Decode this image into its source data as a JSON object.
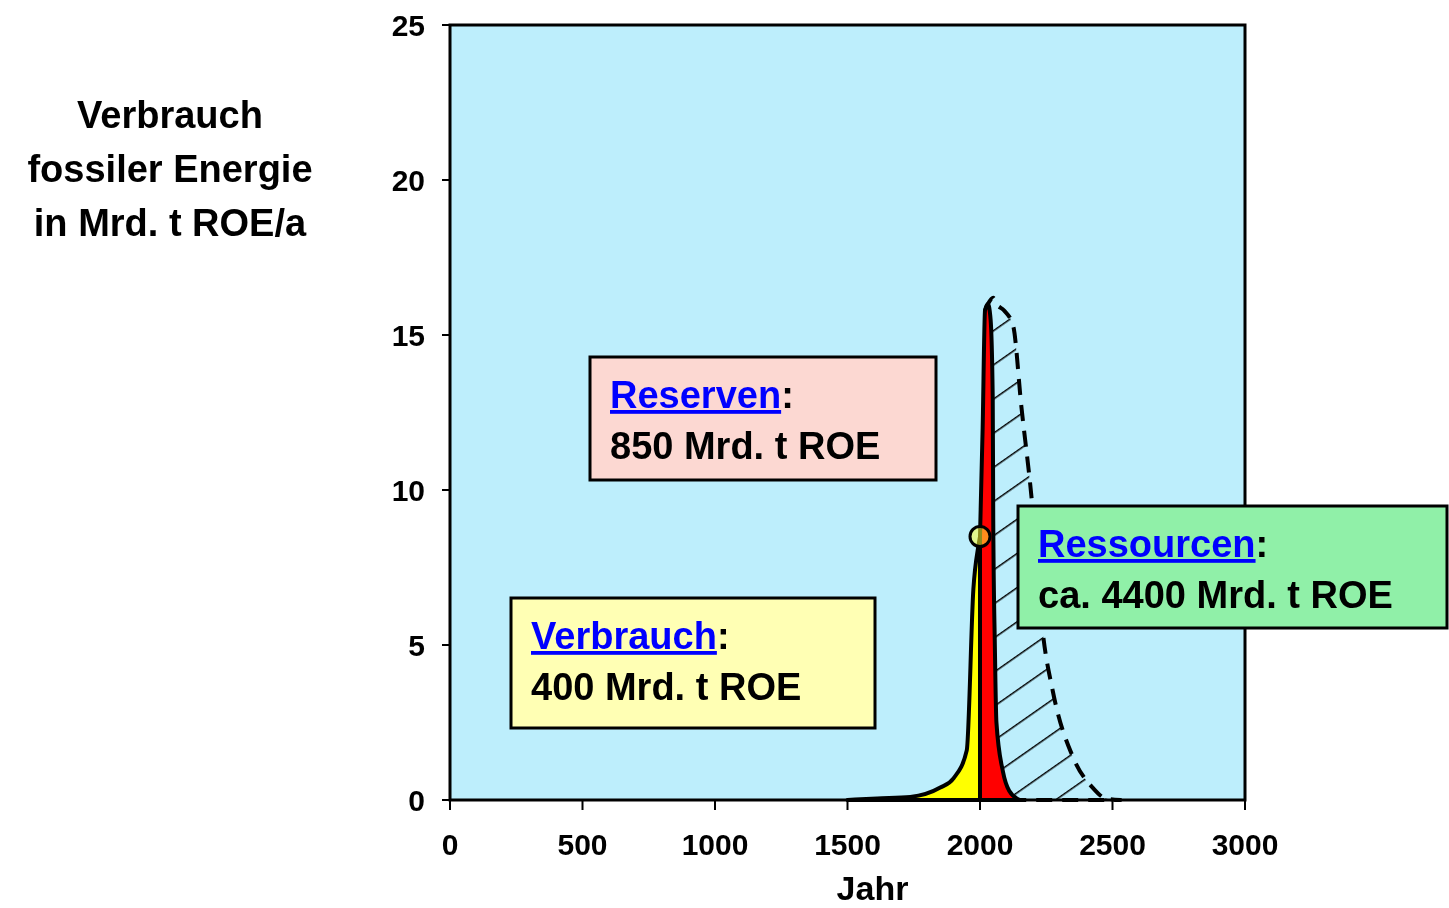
{
  "chart_data": {
    "type": "area",
    "xlabel": "Jahr",
    "ylabel": "Verbrauch fossiler Energie in Mrd. t ROE/a",
    "xlim": [
      0,
      3000
    ],
    "xticks": [
      0,
      500,
      1000,
      1500,
      2000,
      2500,
      3000
    ],
    "ylim": [
      0,
      25
    ],
    "yticks": [
      0,
      5,
      10,
      15,
      20,
      25
    ],
    "series": [
      {
        "color": "#000000",
        "line_style": "dashed",
        "x": [
          2019,
          2030,
          2050,
          2062,
          2090,
          2125,
          2156,
          2194,
          2237,
          2275,
          2350,
          2425,
          2475,
          2530
        ],
        "values": [
          15.8,
          16.0,
          16.2,
          16.0,
          15.8,
          15.3,
          12.7,
          9.8,
          5.4,
          3.5,
          1.4,
          0.4,
          0.05,
          0
        ]
      },
      {
        "color": "#ffff00",
        "x": [
          1500,
          1612,
          1737,
          1850,
          1900,
          1950,
          1975,
          1994,
          2000
        ],
        "values": [
          0,
          0.05,
          0.1,
          0.4,
          0.7,
          1.6,
          6.8,
          8.2,
          8.5
        ]
      },
      {
        "color": "#ff0000",
        "x": [
          2000,
          2010,
          2019,
          2030,
          2040,
          2048,
          2050,
          2056,
          2062,
          2087,
          2110,
          2150
        ],
        "values": [
          8.5,
          12,
          15.8,
          16.0,
          15.5,
          13,
          9,
          5,
          2.5,
          0.9,
          0.3,
          0
        ]
      },
      {
        "type": "scatter",
        "color": "#ffff33",
        "x": [
          2000
        ],
        "values": [
          8.5
        ]
      }
    ],
    "annotations": [
      "Ressourcen: ca. 4400 Mrd. t ROE",
      "Verbrauch: 400 Mrd. t ROE",
      "Reserven: 850 Mrd. t ROE"
    ]
  }
}
